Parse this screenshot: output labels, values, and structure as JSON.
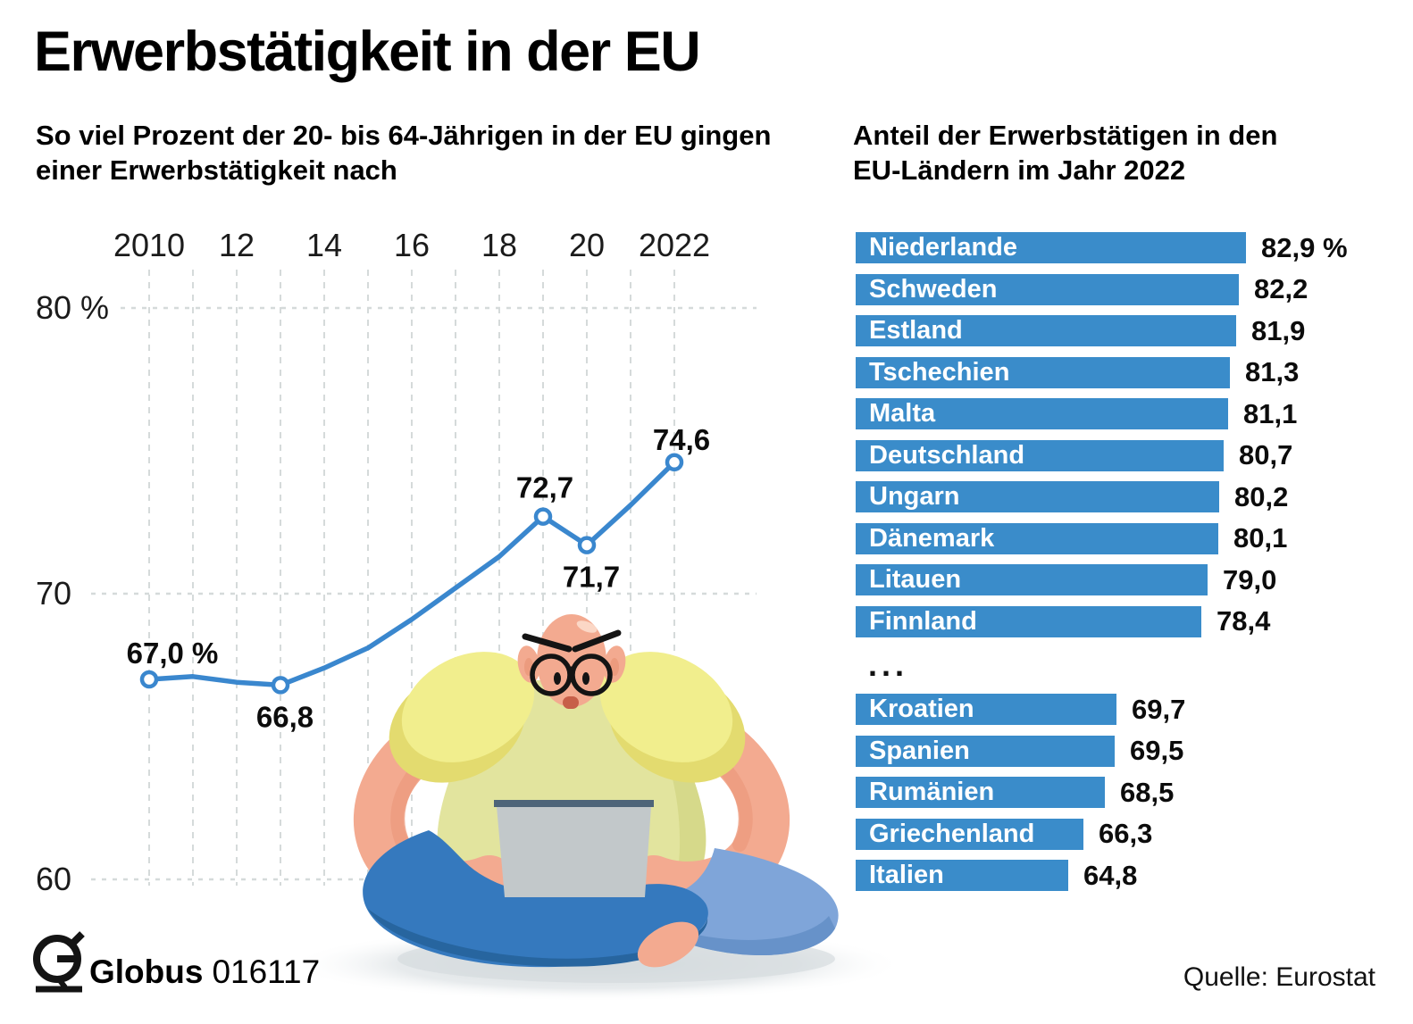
{
  "page": {
    "title": "Erwerbstätigkeit in der EU",
    "subtitle_left_line1": "So viel Prozent der 20- bis 64-Jährigen in der EU gingen",
    "subtitle_left_line2": "einer Erwerbstätigkeit nach",
    "subtitle_right_line1": "Anteil der Erwerbstätigen in den",
    "subtitle_right_line2": "EU-Ländern im Jahr 2022",
    "separator": "...",
    "illustration": "person-sitting-cross-legged-with-laptop",
    "footer": {
      "brand": "Globus",
      "brand_number": "016117",
      "source": "Quelle: Eurostat"
    }
  },
  "colors": {
    "bar_blue": "#3a8cca",
    "line_blue": "#3a87ce",
    "grid_gray": "#d5dada",
    "text_black": "#0c0c0c",
    "bar_text_white": "#ffffff"
  },
  "chart_data": [
    {
      "type": "line",
      "title": "So viel Prozent der 20- bis 64-Jährigen in der EU gingen einer Erwerbstätigkeit nach",
      "x": [
        2010,
        2011,
        2012,
        2013,
        2014,
        2015,
        2016,
        2017,
        2018,
        2019,
        2020,
        2021,
        2022
      ],
      "values": [
        67.0,
        67.1,
        66.9,
        66.8,
        67.4,
        68.1,
        69.1,
        70.2,
        71.3,
        72.7,
        71.7,
        73.1,
        74.6
      ],
      "x_tick_labels": [
        "2010",
        "12",
        "14",
        "16",
        "18",
        "20",
        "2022"
      ],
      "x_tick_years": [
        2010,
        2012,
        2014,
        2016,
        2018,
        2020,
        2022
      ],
      "y_tick_labels": [
        "80 %",
        "70",
        "60"
      ],
      "y_tick_values": [
        80,
        70,
        60
      ],
      "ylim": [
        59,
        81
      ],
      "grid": true,
      "legend": "none",
      "labeled_points": [
        {
          "year": 2010,
          "value": 67.0,
          "label": "67,0 %",
          "placement": "above"
        },
        {
          "year": 2013,
          "value": 66.8,
          "label": "66,8",
          "placement": "below"
        },
        {
          "year": 2019,
          "value": 72.7,
          "label": "72,7",
          "placement": "above"
        },
        {
          "year": 2020,
          "value": 71.7,
          "label": "71,7",
          "placement": "below"
        },
        {
          "year": 2022,
          "value": 74.6,
          "label": "74,6",
          "placement": "above"
        }
      ]
    },
    {
      "type": "bar",
      "title": "Anteil der Erwerbstätigen in den EU-Ländern im Jahr 2022",
      "unit": "%",
      "top_group": [
        {
          "country": "Niederlande",
          "value": 82.9,
          "display": "82,9 %"
        },
        {
          "country": "Schweden",
          "value": 82.2,
          "display": "82,2"
        },
        {
          "country": "Estland",
          "value": 81.9,
          "display": "81,9"
        },
        {
          "country": "Tschechien",
          "value": 81.3,
          "display": "81,3"
        },
        {
          "country": "Malta",
          "value": 81.1,
          "display": "81,1"
        },
        {
          "country": "Deutschland",
          "value": 80.7,
          "display": "80,7"
        },
        {
          "country": "Ungarn",
          "value": 80.2,
          "display": "80,2"
        },
        {
          "country": "Dänemark",
          "value": 80.1,
          "display": "80,1"
        },
        {
          "country": "Litauen",
          "value": 79.0,
          "display": "79,0"
        },
        {
          "country": "Finnland",
          "value": 78.4,
          "display": "78,4"
        }
      ],
      "bottom_group": [
        {
          "country": "Kroatien",
          "value": 69.7,
          "display": "69,7"
        },
        {
          "country": "Spanien",
          "value": 69.5,
          "display": "69,5"
        },
        {
          "country": "Rumänien",
          "value": 68.5,
          "display": "68,5"
        },
        {
          "country": "Griechenland",
          "value": 66.3,
          "display": "66,3"
        },
        {
          "country": "Italien",
          "value": 64.8,
          "display": "64,8"
        }
      ]
    }
  ]
}
